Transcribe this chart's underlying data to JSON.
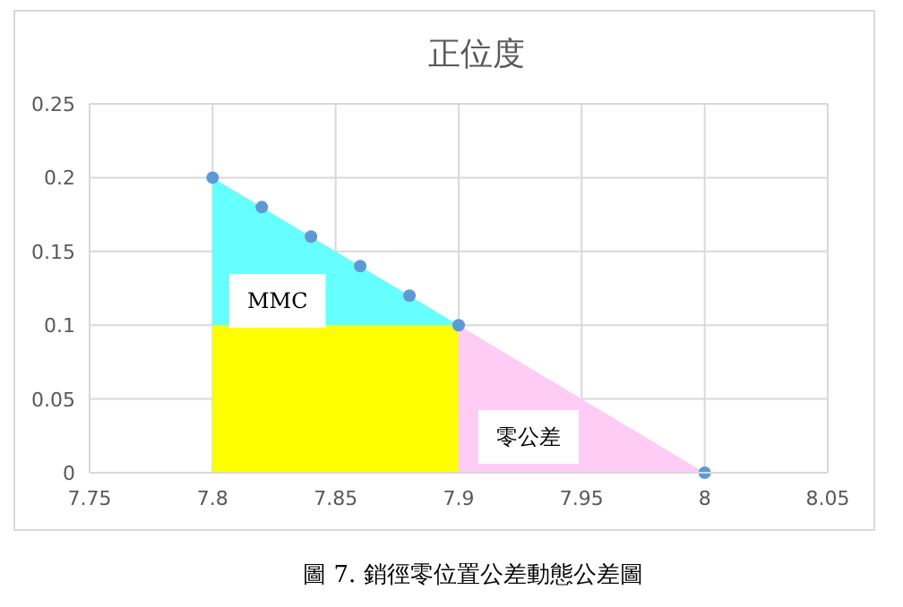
{
  "chart_data": {
    "type": "area",
    "title": "正位度",
    "xlim": [
      7.75,
      8.05
    ],
    "xticks": [
      7.75,
      7.8,
      7.85,
      7.9,
      7.95,
      8,
      8.05
    ],
    "ylim": [
      0,
      0.25
    ],
    "yticks": [
      0,
      0.05,
      0.1,
      0.15,
      0.2,
      0.25
    ],
    "grid": true,
    "series": [
      {
        "color": "#66ffff",
        "x": [
          7.8,
          7.9
        ],
        "values": [
          0.2,
          0.1
        ]
      },
      {
        "color": "#ffff00",
        "x": [
          7.8,
          7.9
        ],
        "values": [
          0.1,
          0.1
        ]
      },
      {
        "color": "#ffccf5",
        "x": [
          7.9,
          8
        ],
        "values": [
          0.1,
          0
        ]
      },
      {
        "type": "scatter",
        "color": "#5b9bd5",
        "marker": "circle",
        "x": [
          7.8,
          7.82,
          7.84,
          7.86,
          7.88,
          7.9,
          8
        ],
        "values": [
          0.2,
          0.18,
          0.16,
          0.14,
          0.12,
          0.1,
          0
        ]
      }
    ],
    "annotations": [
      "MMC",
      "零公差",
      "圖 7. 銷徑零位置公差動態公差圖"
    ]
  }
}
